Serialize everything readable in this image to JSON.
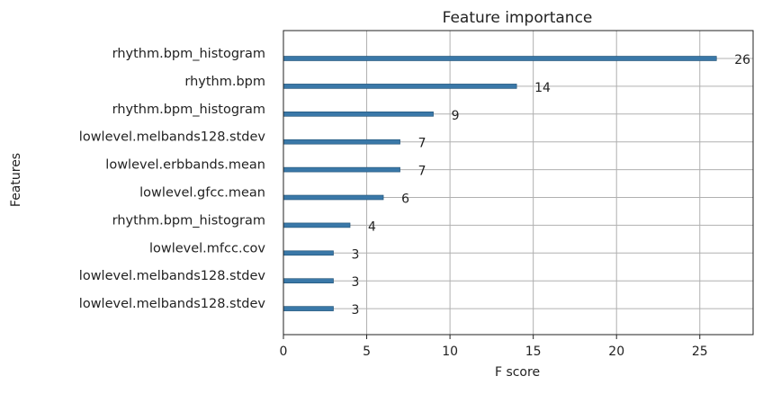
{
  "chart_data": {
    "type": "bar",
    "orientation": "horizontal",
    "title": "Feature importance",
    "xlabel": "F score",
    "ylabel": "Features",
    "xlim": [
      0,
      28.2
    ],
    "xticks": [
      0,
      5,
      10,
      15,
      20,
      25
    ],
    "grid": true,
    "bar_color": "#3a78a8",
    "categories": [
      "rhythm.bpm_histogram",
      "rhythm.bpm",
      "rhythm.bpm_histogram",
      "lowlevel.melbands128.stdev",
      "lowlevel.erbbands.mean",
      "lowlevel.gfcc.mean",
      "rhythm.bpm_histogram",
      "lowlevel.mfcc.cov",
      "lowlevel.melbands128.stdev",
      "lowlevel.melbands128.stdev"
    ],
    "values": [
      26,
      14,
      9,
      7,
      7,
      6,
      4,
      3,
      3,
      3
    ]
  }
}
